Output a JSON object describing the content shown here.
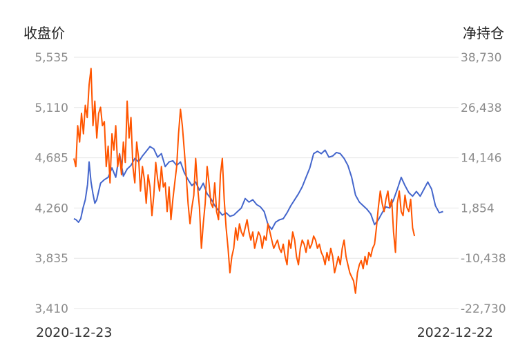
{
  "chart_data": {
    "type": "line",
    "left_axis": {
      "title": "收盘价",
      "ticks": [
        "5,535",
        "5,110",
        "4,685",
        "4,260",
        "3,835",
        "3,410"
      ],
      "range": [
        3410,
        5535
      ]
    },
    "right_axis": {
      "title": "净持仓",
      "ticks": [
        "38,730",
        "26,438",
        "14,146",
        "1,854",
        "-10,438",
        "-22,730"
      ],
      "range": [
        -22730,
        38730
      ]
    },
    "x_labels": {
      "start": "2020-12-23",
      "end": "2022-12-22"
    },
    "grid": true,
    "series": [
      {
        "axis": "left",
        "color": "#4466cc",
        "points": [
          [
            0,
            4170
          ],
          [
            0.006,
            4160
          ],
          [
            0.012,
            4140
          ],
          [
            0.018,
            4170
          ],
          [
            0.024,
            4260
          ],
          [
            0.03,
            4330
          ],
          [
            0.036,
            4460
          ],
          [
            0.04,
            4650
          ],
          [
            0.045,
            4480
          ],
          [
            0.05,
            4380
          ],
          [
            0.055,
            4300
          ],
          [
            0.06,
            4330
          ],
          [
            0.065,
            4400
          ],
          [
            0.07,
            4470
          ],
          [
            0.08,
            4500
          ],
          [
            0.09,
            4520
          ],
          [
            0.1,
            4600
          ],
          [
            0.11,
            4520
          ],
          [
            0.12,
            4720
          ],
          [
            0.13,
            4530
          ],
          [
            0.14,
            4590
          ],
          [
            0.15,
            4620
          ],
          [
            0.16,
            4680
          ],
          [
            0.17,
            4650
          ],
          [
            0.18,
            4700
          ],
          [
            0.19,
            4740
          ],
          [
            0.2,
            4780
          ],
          [
            0.21,
            4760
          ],
          [
            0.22,
            4690
          ],
          [
            0.23,
            4720
          ],
          [
            0.24,
            4610
          ],
          [
            0.25,
            4650
          ],
          [
            0.26,
            4660
          ],
          [
            0.27,
            4620
          ],
          [
            0.28,
            4650
          ],
          [
            0.29,
            4560
          ],
          [
            0.3,
            4500
          ],
          [
            0.31,
            4450
          ],
          [
            0.32,
            4480
          ],
          [
            0.33,
            4410
          ],
          [
            0.34,
            4470
          ],
          [
            0.35,
            4380
          ],
          [
            0.36,
            4340
          ],
          [
            0.37,
            4280
          ],
          [
            0.38,
            4240
          ],
          [
            0.39,
            4200
          ],
          [
            0.4,
            4220
          ],
          [
            0.41,
            4190
          ],
          [
            0.42,
            4200
          ],
          [
            0.43,
            4230
          ],
          [
            0.44,
            4260
          ],
          [
            0.45,
            4340
          ],
          [
            0.46,
            4310
          ],
          [
            0.47,
            4330
          ],
          [
            0.48,
            4290
          ],
          [
            0.49,
            4270
          ],
          [
            0.5,
            4230
          ],
          [
            0.51,
            4120
          ],
          [
            0.52,
            4080
          ],
          [
            0.53,
            4140
          ],
          [
            0.54,
            4160
          ],
          [
            0.55,
            4170
          ],
          [
            0.56,
            4220
          ],
          [
            0.57,
            4280
          ],
          [
            0.58,
            4330
          ],
          [
            0.59,
            4380
          ],
          [
            0.6,
            4440
          ],
          [
            0.61,
            4520
          ],
          [
            0.62,
            4600
          ],
          [
            0.63,
            4720
          ],
          [
            0.64,
            4740
          ],
          [
            0.65,
            4720
          ],
          [
            0.66,
            4750
          ],
          [
            0.67,
            4690
          ],
          [
            0.68,
            4700
          ],
          [
            0.69,
            4730
          ],
          [
            0.7,
            4720
          ],
          [
            0.71,
            4680
          ],
          [
            0.72,
            4620
          ],
          [
            0.73,
            4520
          ],
          [
            0.74,
            4370
          ],
          [
            0.75,
            4310
          ],
          [
            0.76,
            4280
          ],
          [
            0.77,
            4250
          ],
          [
            0.78,
            4210
          ],
          [
            0.79,
            4120
          ],
          [
            0.8,
            4160
          ],
          [
            0.81,
            4220
          ],
          [
            0.82,
            4270
          ],
          [
            0.83,
            4260
          ],
          [
            0.84,
            4330
          ],
          [
            0.85,
            4420
          ],
          [
            0.86,
            4520
          ],
          [
            0.87,
            4450
          ],
          [
            0.88,
            4390
          ],
          [
            0.89,
            4360
          ],
          [
            0.9,
            4400
          ],
          [
            0.91,
            4360
          ],
          [
            0.92,
            4420
          ],
          [
            0.93,
            4480
          ],
          [
            0.94,
            4420
          ],
          [
            0.95,
            4280
          ],
          [
            0.96,
            4220
          ],
          [
            0.97,
            4230
          ]
        ]
      },
      {
        "axis": "right",
        "color": "#ff5500",
        "points": [
          [
            0,
            14000
          ],
          [
            0.005,
            12000
          ],
          [
            0.01,
            22000
          ],
          [
            0.015,
            18000
          ],
          [
            0.02,
            25000
          ],
          [
            0.025,
            20000
          ],
          [
            0.03,
            27000
          ],
          [
            0.035,
            24000
          ],
          [
            0.04,
            32000
          ],
          [
            0.045,
            36000
          ],
          [
            0.05,
            22000
          ],
          [
            0.055,
            28000
          ],
          [
            0.06,
            19000
          ],
          [
            0.065,
            25000
          ],
          [
            0.07,
            26500
          ],
          [
            0.075,
            22000
          ],
          [
            0.08,
            23000
          ],
          [
            0.085,
            12000
          ],
          [
            0.09,
            17000
          ],
          [
            0.095,
            8000
          ],
          [
            0.1,
            20000
          ],
          [
            0.105,
            16000
          ],
          [
            0.11,
            22000
          ],
          [
            0.115,
            12000
          ],
          [
            0.12,
            15000
          ],
          [
            0.125,
            10000
          ],
          [
            0.13,
            18000
          ],
          [
            0.135,
            13000
          ],
          [
            0.14,
            28000
          ],
          [
            0.145,
            19000
          ],
          [
            0.15,
            24000
          ],
          [
            0.155,
            12000
          ],
          [
            0.16,
            8000
          ],
          [
            0.165,
            18000
          ],
          [
            0.17,
            14000
          ],
          [
            0.175,
            6000
          ],
          [
            0.18,
            12000
          ],
          [
            0.185,
            9000
          ],
          [
            0.19,
            3000
          ],
          [
            0.195,
            10000
          ],
          [
            0.2,
            7000
          ],
          [
            0.205,
            0
          ],
          [
            0.21,
            5000
          ],
          [
            0.215,
            13000
          ],
          [
            0.22,
            9000
          ],
          [
            0.225,
            6000
          ],
          [
            0.23,
            12000
          ],
          [
            0.235,
            7000
          ],
          [
            0.24,
            8000
          ],
          [
            0.245,
            1000
          ],
          [
            0.25,
            7000
          ],
          [
            0.255,
            -1000
          ],
          [
            0.26,
            4000
          ],
          [
            0.265,
            8000
          ],
          [
            0.27,
            12000
          ],
          [
            0.275,
            20000
          ],
          [
            0.28,
            26000
          ],
          [
            0.285,
            22000
          ],
          [
            0.29,
            16000
          ],
          [
            0.295,
            10000
          ],
          [
            0.3,
            3000
          ],
          [
            0.305,
            -2000
          ],
          [
            0.31,
            2000
          ],
          [
            0.315,
            5000
          ],
          [
            0.32,
            14000
          ],
          [
            0.325,
            7000
          ],
          [
            0.33,
            2000
          ],
          [
            0.335,
            -8000
          ],
          [
            0.34,
            -2000
          ],
          [
            0.345,
            3000
          ],
          [
            0.35,
            12000
          ],
          [
            0.355,
            8000
          ],
          [
            0.36,
            3000
          ],
          [
            0.365,
            2000
          ],
          [
            0.37,
            8000
          ],
          [
            0.375,
            1000
          ],
          [
            0.38,
            -1000
          ],
          [
            0.385,
            10000
          ],
          [
            0.39,
            14000
          ],
          [
            0.395,
            4000
          ],
          [
            0.4,
            -3000
          ],
          [
            0.405,
            -8000
          ],
          [
            0.41,
            -14000
          ],
          [
            0.415,
            -10000
          ],
          [
            0.42,
            -8000
          ],
          [
            0.425,
            -3000
          ],
          [
            0.43,
            -6000
          ],
          [
            0.435,
            -2000
          ],
          [
            0.44,
            -4000
          ],
          [
            0.445,
            -5000
          ],
          [
            0.45,
            -3000
          ],
          [
            0.455,
            -1000
          ],
          [
            0.46,
            -4000
          ],
          [
            0.465,
            -6000
          ],
          [
            0.47,
            -4000
          ],
          [
            0.475,
            -8000
          ],
          [
            0.48,
            -6000
          ],
          [
            0.485,
            -4000
          ],
          [
            0.49,
            -5000
          ],
          [
            0.495,
            -8000
          ],
          [
            0.5,
            -5000
          ],
          [
            0.505,
            -6000
          ],
          [
            0.51,
            -2000
          ],
          [
            0.515,
            -4000
          ],
          [
            0.52,
            -6000
          ],
          [
            0.525,
            -8000
          ],
          [
            0.53,
            -7000
          ],
          [
            0.535,
            -6000
          ],
          [
            0.54,
            -8000
          ],
          [
            0.545,
            -9000
          ],
          [
            0.55,
            -7000
          ],
          [
            0.555,
            -10000
          ],
          [
            0.56,
            -12000
          ],
          [
            0.565,
            -6000
          ],
          [
            0.57,
            -8000
          ],
          [
            0.575,
            -4000
          ],
          [
            0.58,
            -6000
          ],
          [
            0.585,
            -10000
          ],
          [
            0.59,
            -12000
          ],
          [
            0.595,
            -8000
          ],
          [
            0.6,
            -6000
          ],
          [
            0.605,
            -7000
          ],
          [
            0.61,
            -9000
          ],
          [
            0.615,
            -6000
          ],
          [
            0.62,
            -8000
          ],
          [
            0.625,
            -7000
          ],
          [
            0.63,
            -5000
          ],
          [
            0.635,
            -6000
          ],
          [
            0.64,
            -8000
          ],
          [
            0.645,
            -7000
          ],
          [
            0.65,
            -9000
          ],
          [
            0.655,
            -10000
          ],
          [
            0.66,
            -12000
          ],
          [
            0.665,
            -9000
          ],
          [
            0.67,
            -11000
          ],
          [
            0.675,
            -8000
          ],
          [
            0.68,
            -10000
          ],
          [
            0.685,
            -14000
          ],
          [
            0.69,
            -12000
          ],
          [
            0.695,
            -10000
          ],
          [
            0.7,
            -12000
          ],
          [
            0.705,
            -8000
          ],
          [
            0.71,
            -6000
          ],
          [
            0.715,
            -10000
          ],
          [
            0.72,
            -12000
          ],
          [
            0.725,
            -14000
          ],
          [
            0.73,
            -15000
          ],
          [
            0.735,
            -16000
          ],
          [
            0.74,
            -19000
          ],
          [
            0.745,
            -14000
          ],
          [
            0.75,
            -12000
          ],
          [
            0.755,
            -11000
          ],
          [
            0.76,
            -13000
          ],
          [
            0.765,
            -10000
          ],
          [
            0.77,
            -12000
          ],
          [
            0.775,
            -9000
          ],
          [
            0.78,
            -10000
          ],
          [
            0.785,
            -8000
          ],
          [
            0.79,
            -7000
          ],
          [
            0.795,
            -3000
          ],
          [
            0.8,
            2000
          ],
          [
            0.805,
            6000
          ],
          [
            0.81,
            3000
          ],
          [
            0.815,
            1000
          ],
          [
            0.82,
            4000
          ],
          [
            0.825,
            6000
          ],
          [
            0.83,
            2000
          ],
          [
            0.835,
            4000
          ],
          [
            0.84,
            -4000
          ],
          [
            0.845,
            -9000
          ],
          [
            0.85,
            3000
          ],
          [
            0.855,
            6000
          ],
          [
            0.86,
            1000
          ],
          [
            0.865,
            0
          ],
          [
            0.87,
            5000
          ],
          [
            0.875,
            2000
          ],
          [
            0.88,
            1000
          ],
          [
            0.885,
            4000
          ],
          [
            0.89,
            -3000
          ],
          [
            0.895,
            -5000
          ]
        ]
      }
    ]
  }
}
